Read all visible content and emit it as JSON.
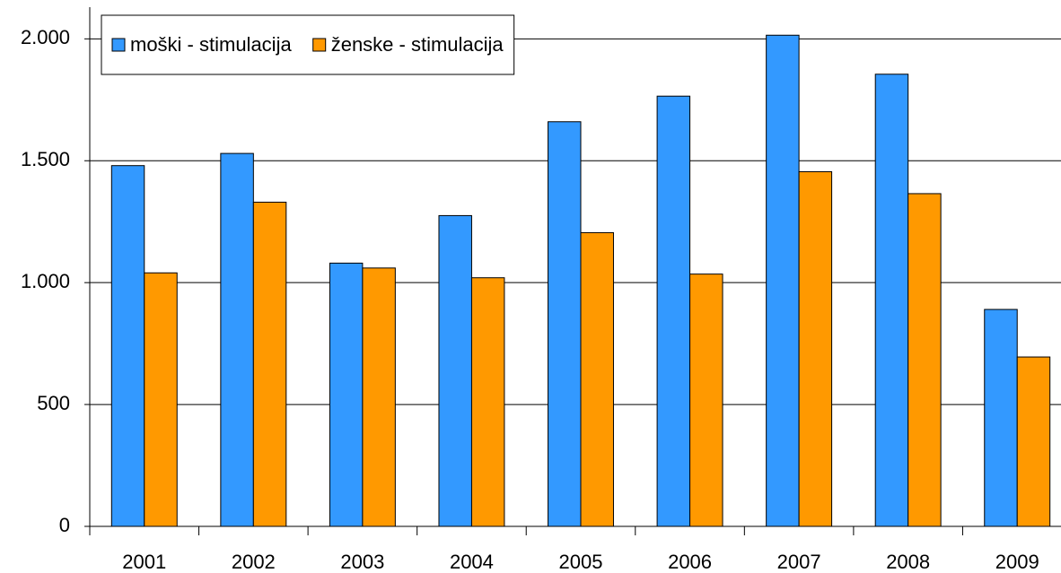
{
  "chart_data": {
    "type": "bar",
    "categories": [
      "2001",
      "2002",
      "2003",
      "2004",
      "2005",
      "2006",
      "2007",
      "2008",
      "2009"
    ],
    "series": [
      {
        "name": "moški - stimulacija",
        "color": "#3399ff",
        "values": [
          1480,
          1530,
          1080,
          1275,
          1660,
          1765,
          2015,
          1855,
          890
        ]
      },
      {
        "name": "ženske - stimulacija",
        "color": "#ff9900",
        "values": [
          1040,
          1330,
          1060,
          1020,
          1205,
          1035,
          1455,
          1365,
          695
        ]
      }
    ],
    "ylim": [
      0,
      2130
    ],
    "yticks": [
      0,
      500,
      {
        "value": 1000,
        "label": "1.000"
      },
      {
        "value": 1500,
        "label": "1.500"
      },
      {
        "value": 2000,
        "label": "2.000"
      }
    ],
    "grid": true,
    "legend": "top-left"
  }
}
